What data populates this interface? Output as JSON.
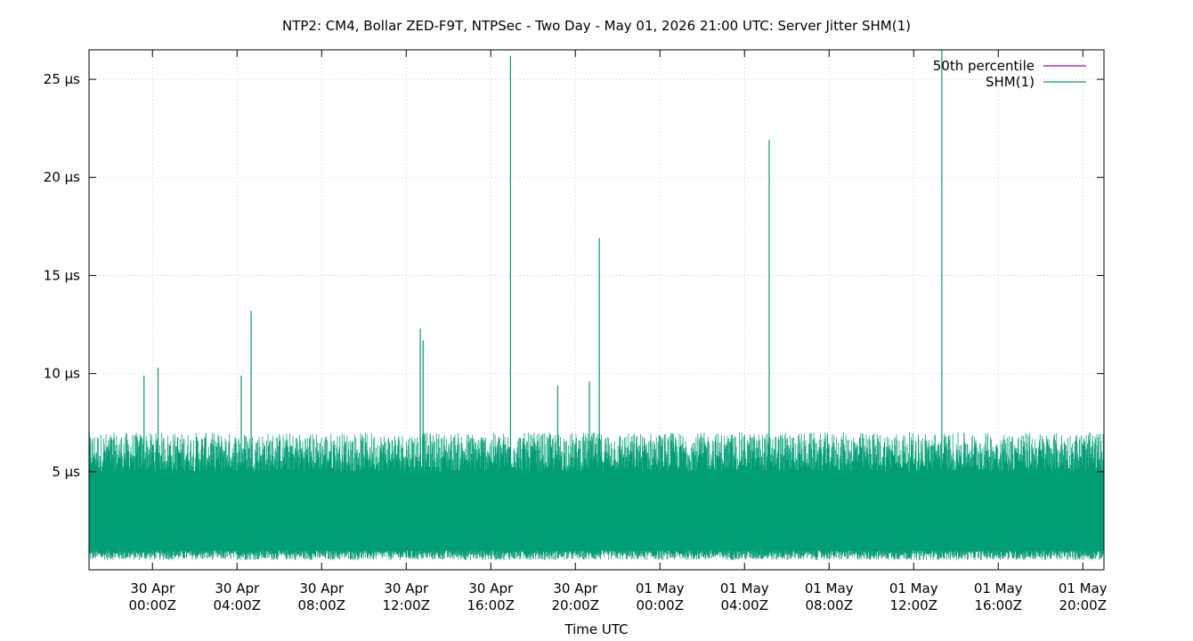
{
  "chart_data": {
    "type": "line",
    "title": "NTP2: CM4, Bollar ZED-F9T, NTPSec - Two Day - May 01, 2026 21:00 UTC: Server Jitter SHM(1)",
    "xlabel": "Time UTC",
    "ylabel": "",
    "x_range": [
      "2026-04-29T21:00Z",
      "2026-05-01T21:00Z"
    ],
    "ylim": [
      0,
      26.5
    ],
    "grid": true,
    "legend_position": "top-right",
    "y_ticks": [
      {
        "value": 5,
        "label": "5 µs"
      },
      {
        "value": 10,
        "label": "10 µs"
      },
      {
        "value": 15,
        "label": "15 µs"
      },
      {
        "value": 20,
        "label": "20 µs"
      },
      {
        "value": 25,
        "label": "25 µs"
      }
    ],
    "x_ticks": [
      {
        "value": "2026-04-30T00:00Z",
        "line1": "30 Apr",
        "line2": "00:00Z"
      },
      {
        "value": "2026-04-30T04:00Z",
        "line1": "30 Apr",
        "line2": "04:00Z"
      },
      {
        "value": "2026-04-30T08:00Z",
        "line1": "30 Apr",
        "line2": "08:00Z"
      },
      {
        "value": "2026-04-30T12:00Z",
        "line1": "30 Apr",
        "line2": "12:00Z"
      },
      {
        "value": "2026-04-30T16:00Z",
        "line1": "30 Apr",
        "line2": "16:00Z"
      },
      {
        "value": "2026-04-30T20:00Z",
        "line1": "30 Apr",
        "line2": "20:00Z"
      },
      {
        "value": "2026-05-01T00:00Z",
        "line1": "01 May",
        "line2": "00:00Z"
      },
      {
        "value": "2026-05-01T04:00Z",
        "line1": "01 May",
        "line2": "04:00Z"
      },
      {
        "value": "2026-05-01T08:00Z",
        "line1": "01 May",
        "line2": "08:00Z"
      },
      {
        "value": "2026-05-01T12:00Z",
        "line1": "01 May",
        "line2": "12:00Z"
      },
      {
        "value": "2026-05-01T16:00Z",
        "line1": "01 May",
        "line2": "16:00Z"
      },
      {
        "value": "2026-05-01T20:00Z",
        "line1": "01 May",
        "line2": "20:00Z"
      }
    ],
    "series": [
      {
        "name": "50th percentile",
        "color": "#9400d3",
        "values": []
      },
      {
        "name": "SHM(1)",
        "color": "#009e73",
        "typical_range": [
          0.5,
          6.5
        ],
        "spikes": [
          {
            "x": "2026-04-29T23:36Z",
            "y": 9.9
          },
          {
            "x": "2026-04-30T00:16Z",
            "y": 10.3
          },
          {
            "x": "2026-04-30T04:12Z",
            "y": 9.9
          },
          {
            "x": "2026-04-30T04:40Z",
            "y": 13.2
          },
          {
            "x": "2026-04-30T12:40Z",
            "y": 12.3
          },
          {
            "x": "2026-04-30T12:48Z",
            "y": 11.7
          },
          {
            "x": "2026-04-30T16:56Z",
            "y": 26.2
          },
          {
            "x": "2026-04-30T19:10Z",
            "y": 9.4
          },
          {
            "x": "2026-04-30T20:40Z",
            "y": 9.6
          },
          {
            "x": "2026-04-30T21:08Z",
            "y": 16.9
          },
          {
            "x": "2026-05-01T05:10Z",
            "y": 21.9
          },
          {
            "x": "2026-05-01T13:20Z",
            "y": 26.5
          }
        ]
      }
    ]
  }
}
